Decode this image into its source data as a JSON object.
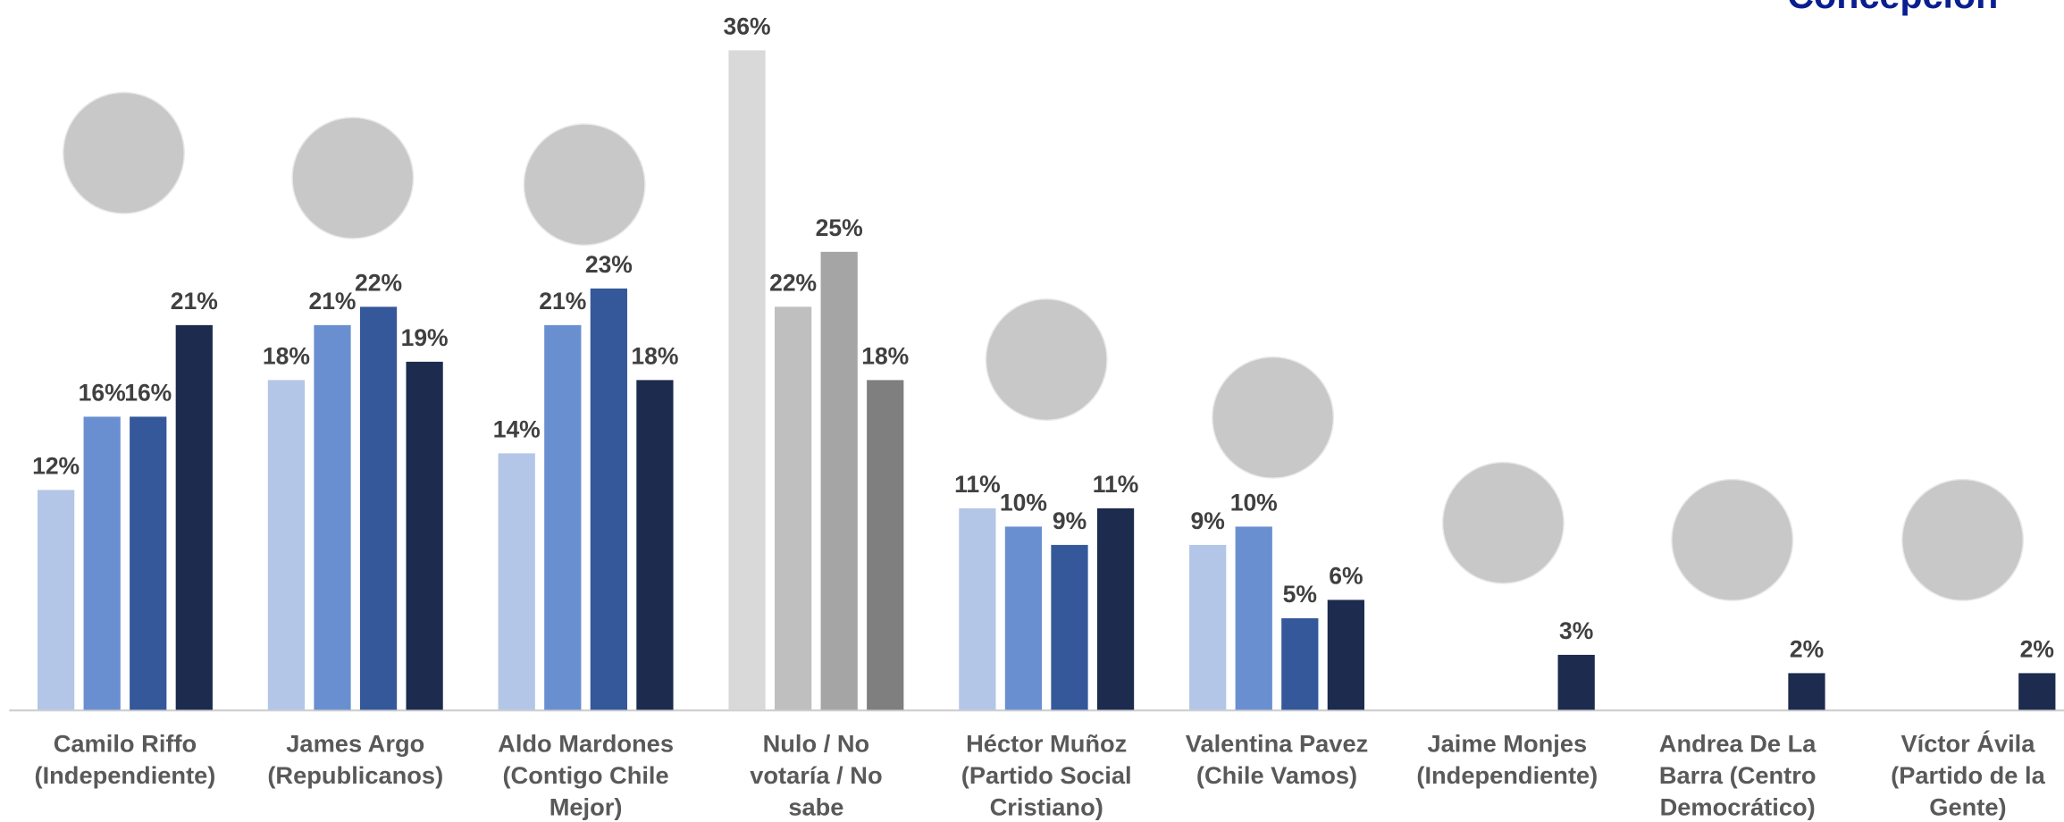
{
  "chart_data": {
    "type": "bar",
    "title": "Concepción",
    "categories": [
      [
        "Camilo Riffo",
        "(Independiente)"
      ],
      [
        "James Argo",
        "(Republicanos)"
      ],
      [
        "Aldo Mardones",
        "(Contigo Chile",
        "Mejor)"
      ],
      [
        "Nulo / No",
        "votaría / No",
        "sabe"
      ],
      [
        "Héctor Muñoz",
        "(Partido Social",
        "Cristiano)"
      ],
      [
        "Valentina Pavez",
        "(Chile Vamos)"
      ],
      [
        "Jaime Monjes",
        "(Independiente)"
      ],
      [
        "Andrea De La",
        "Barra (Centro",
        "Democrático)"
      ],
      [
        "Víctor Ávila",
        "(Partido de la",
        "Gente)"
      ]
    ],
    "series": [
      {
        "color": "#b4c6e7",
        "values": [
          12,
          18,
          14,
          36,
          11,
          9,
          null,
          null,
          null
        ],
        "value_labels": [
          "12%",
          "18%",
          "14%",
          "36%",
          "11%",
          "9%",
          null,
          null,
          null
        ]
      },
      {
        "color": "#6a8fd0",
        "values": [
          16,
          21,
          21,
          22,
          10,
          10,
          null,
          null,
          null
        ],
        "value_labels": [
          "16%",
          "21%",
          "21%",
          "22%",
          "10%",
          "10%",
          null,
          null,
          null
        ]
      },
      {
        "color": "#35589a",
        "values": [
          16,
          22,
          23,
          25,
          9,
          5,
          null,
          null,
          null
        ],
        "value_labels": [
          "16%",
          "22%",
          "23%",
          "25%",
          "9%",
          "5%",
          null,
          null,
          null
        ]
      },
      {
        "color": "#1c2b4e",
        "values": [
          21,
          19,
          18,
          18,
          11,
          6,
          3,
          2,
          2
        ],
        "value_labels": [
          "21%",
          "19%",
          "18%",
          "18%",
          "11%",
          "6%",
          "3%",
          "2%",
          "2%"
        ]
      }
    ],
    "neutral_category": 3,
    "neutral_colors": [
      "#d9d9d9",
      "#bfbfbf",
      "#a5a5a5",
      "#7f7f7f"
    ],
    "ylim": [
      0,
      36
    ]
  }
}
